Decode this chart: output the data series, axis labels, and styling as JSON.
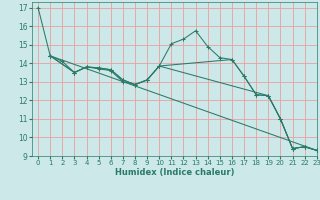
{
  "background_color": "#cce8e8",
  "grid_color": "#e8a0a0",
  "line_color": "#2a7a6a",
  "xlabel": "Humidex (Indice chaleur)",
  "xlim": [
    -0.5,
    23
  ],
  "ylim": [
    9,
    17.3
  ],
  "yticks": [
    9,
    10,
    11,
    12,
    13,
    14,
    15,
    16,
    17
  ],
  "xticks": [
    0,
    1,
    2,
    3,
    4,
    5,
    6,
    7,
    8,
    9,
    10,
    11,
    12,
    13,
    14,
    15,
    16,
    17,
    18,
    19,
    20,
    21,
    22,
    23
  ],
  "lines": [
    {
      "x": [
        0,
        1,
        2,
        3,
        4,
        5,
        6,
        7,
        8,
        9,
        10,
        11,
        12,
        13,
        14,
        15,
        16,
        17,
        18,
        19,
        20,
        21,
        22,
        23
      ],
      "y": [
        17.0,
        14.4,
        14.1,
        13.5,
        13.8,
        13.7,
        13.6,
        13.0,
        12.85,
        13.1,
        13.85,
        15.05,
        15.3,
        15.75,
        14.9,
        14.3,
        14.2,
        13.3,
        12.3,
        12.25,
        11.0,
        9.4,
        9.5,
        9.3
      ]
    },
    {
      "x": [
        1,
        3,
        4,
        5,
        6,
        7,
        8,
        9,
        10,
        16,
        17,
        18,
        19,
        20,
        21,
        22,
        23
      ],
      "y": [
        14.4,
        13.5,
        13.8,
        13.75,
        13.65,
        13.1,
        12.85,
        13.1,
        13.85,
        14.2,
        13.3,
        12.3,
        12.25,
        11.0,
        9.4,
        9.5,
        9.3
      ]
    },
    {
      "x": [
        1,
        3,
        4,
        5,
        6,
        7,
        8,
        9,
        10,
        19,
        20,
        21,
        22,
        23
      ],
      "y": [
        14.4,
        13.5,
        13.8,
        13.75,
        13.65,
        13.1,
        12.85,
        13.1,
        13.85,
        12.25,
        11.0,
        9.4,
        9.5,
        9.3
      ]
    },
    {
      "x": [
        1,
        23
      ],
      "y": [
        14.4,
        9.3
      ]
    }
  ]
}
